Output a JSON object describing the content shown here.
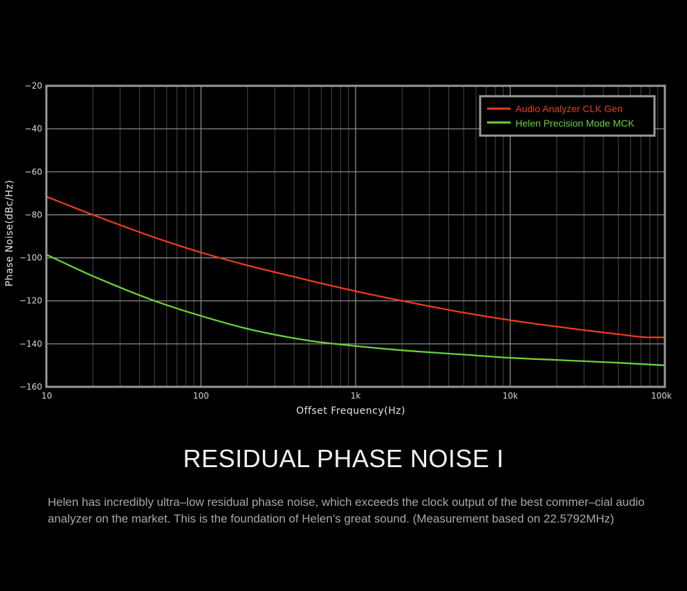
{
  "chart_data": {
    "type": "line",
    "xscale": "log",
    "xlim": [
      10,
      100000
    ],
    "ylim": [
      -160,
      -20
    ],
    "xlabel": "Offset Frequency(Hz)",
    "ylabel": "Phase Noise(dBc/Hz)",
    "x_ticks": [
      10,
      100,
      1000,
      10000,
      100000
    ],
    "x_tick_labels": [
      "10",
      "100",
      "1k",
      "10k",
      "100k"
    ],
    "y_ticks": [
      -20,
      -40,
      -60,
      -80,
      -100,
      -120,
      -140,
      -160
    ],
    "y_tick_labels": [
      "−20",
      "−40",
      "−60",
      "−80",
      "−100",
      "−120",
      "−140",
      "−160"
    ],
    "grid": true,
    "legend_position": "top-right",
    "series": [
      {
        "name": "Audio Analyzer CLK Gen",
        "color": "#ee3b1e",
        "x": [
          10,
          20,
          50,
          100,
          200,
          500,
          1000,
          2000,
          5000,
          10000,
          20000,
          50000,
          80000,
          100000
        ],
        "y": [
          -71.5,
          -80,
          -90.5,
          -97.5,
          -103.5,
          -110.5,
          -115.5,
          -120,
          -125.5,
          -129,
          -132,
          -135.5,
          -137,
          -137
        ]
      },
      {
        "name": "Helen Precision Mode MCK",
        "color": "#6cd13c",
        "x": [
          10,
          20,
          50,
          100,
          200,
          500,
          1000,
          2000,
          5000,
          10000,
          20000,
          50000,
          100000
        ],
        "y": [
          -98.5,
          -108.5,
          -120,
          -127,
          -133,
          -138.5,
          -141,
          -143,
          -145,
          -146.5,
          -147.5,
          -148.8,
          -150
        ]
      }
    ]
  },
  "title": "RESIDUAL PHASE NOISE I",
  "description": "Helen has incredibly ultra–low residual phase noise, which exceeds the clock output of the best commer–cial audio analyzer on the market. This is the foundation of Helen’s great sound. (Measurement based on 22.5792MHz)"
}
